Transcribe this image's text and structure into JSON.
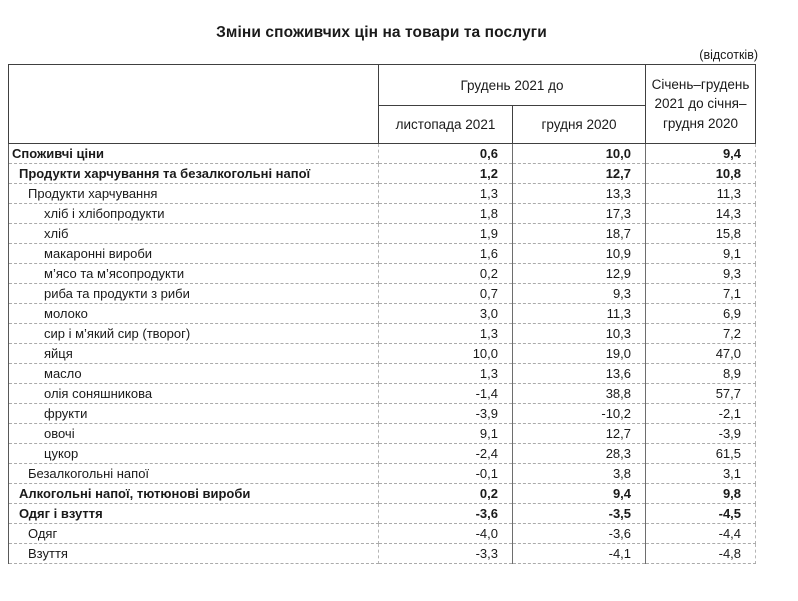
{
  "title": "Зміни споживчих цін на товари та послуги",
  "unit_note": "(відсотків)",
  "colors": {
    "text": "#1a1a1a",
    "header_border": "#404040",
    "grid_light": "#ababab",
    "background": "#ffffff"
  },
  "table": {
    "header": {
      "category_col": "",
      "group_col": "Грудень 2021 до",
      "sub_cols": [
        "листопада 2021",
        "грудня 2020"
      ],
      "period_col": "Січень–грудень 2021 до січня–грудня 2020"
    },
    "rows": [
      {
        "label": "Споживчі ціни",
        "indent": 0,
        "bold": true,
        "values": [
          "0,6",
          "10,0",
          "9,4"
        ]
      },
      {
        "label": "Продукти харчування та безалкогольні напої",
        "indent": 1,
        "bold": true,
        "values": [
          "1,2",
          "12,7",
          "10,8"
        ]
      },
      {
        "label": "Продукти харчування",
        "indent": 2,
        "bold": false,
        "values": [
          "1,3",
          "13,3",
          "11,3"
        ]
      },
      {
        "label": "хліб і хлібопродукти",
        "indent": 3,
        "bold": false,
        "values": [
          "1,8",
          "17,3",
          "14,3"
        ]
      },
      {
        "label": "хліб",
        "indent": 3,
        "bold": false,
        "values": [
          "1,9",
          "18,7",
          "15,8"
        ]
      },
      {
        "label": "макаронні вироби",
        "indent": 3,
        "bold": false,
        "values": [
          "1,6",
          "10,9",
          "9,1"
        ]
      },
      {
        "label": "м’ясо та м’ясопродукти",
        "indent": 3,
        "bold": false,
        "values": [
          "0,2",
          "12,9",
          "9,3"
        ]
      },
      {
        "label": "риба та продукти з риби",
        "indent": 3,
        "bold": false,
        "values": [
          "0,7",
          "9,3",
          "7,1"
        ]
      },
      {
        "label": "молоко",
        "indent": 3,
        "bold": false,
        "values": [
          "3,0",
          "11,3",
          "6,9"
        ]
      },
      {
        "label": "сир і м’який сир (творог)",
        "indent": 3,
        "bold": false,
        "values": [
          "1,3",
          "10,3",
          "7,2"
        ]
      },
      {
        "label": "яйця",
        "indent": 3,
        "bold": false,
        "values": [
          "10,0",
          "19,0",
          "47,0"
        ]
      },
      {
        "label": "масло",
        "indent": 3,
        "bold": false,
        "values": [
          "1,3",
          "13,6",
          "8,9"
        ]
      },
      {
        "label": "олія соняшникова",
        "indent": 3,
        "bold": false,
        "values": [
          "-1,4",
          "38,8",
          "57,7"
        ]
      },
      {
        "label": "фрукти",
        "indent": 3,
        "bold": false,
        "values": [
          "-3,9",
          "-10,2",
          "-2,1"
        ]
      },
      {
        "label": "овочі",
        "indent": 3,
        "bold": false,
        "values": [
          "9,1",
          "12,7",
          "-3,9"
        ]
      },
      {
        "label": "цукор",
        "indent": 3,
        "bold": false,
        "values": [
          "-2,4",
          "28,3",
          "61,5"
        ]
      },
      {
        "label": "Безалкогольні напої",
        "indent": 2,
        "bold": false,
        "values": [
          "-0,1",
          "3,8",
          "3,1"
        ]
      },
      {
        "label": "Алкогольні напої, тютюнові вироби",
        "indent": 1,
        "bold": true,
        "values": [
          "0,2",
          "9,4",
          "9,8"
        ]
      },
      {
        "label": "Одяг і взуття",
        "indent": 1,
        "bold": true,
        "values": [
          "-3,6",
          "-3,5",
          "-4,5"
        ]
      },
      {
        "label": "Одяг",
        "indent": 2,
        "bold": false,
        "values": [
          "-4,0",
          "-3,6",
          "-4,4"
        ]
      },
      {
        "label": "Взуття",
        "indent": 2,
        "bold": false,
        "values": [
          "-3,3",
          "-4,1",
          "-4,8"
        ]
      }
    ]
  }
}
